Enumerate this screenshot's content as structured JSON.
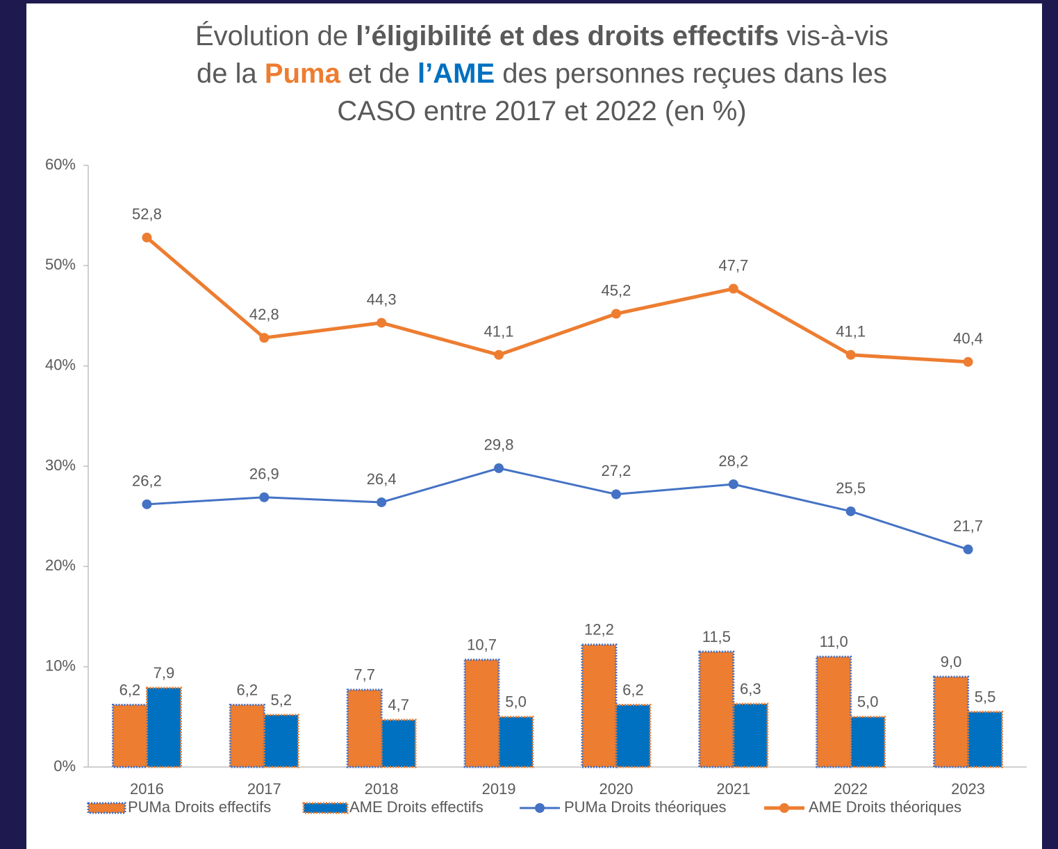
{
  "chart_data": {
    "type": "combo",
    "title_lines": [
      [
        {
          "text": "Évolution de "
        },
        {
          "text": "l’éligibilité et des droits effectifs",
          "bold": true
        },
        {
          "text": " vis-à-vis"
        }
      ],
      [
        {
          "text": "de la "
        },
        {
          "text": "Puma",
          "bold": true,
          "color": "#ed7d31"
        },
        {
          "text": " et de "
        },
        {
          "text": "l’AME",
          "bold": true,
          "color": "#0070c0"
        },
        {
          "text": " des personnes reçues dans les"
        }
      ],
      [
        {
          "text": "CASO entre 2017 et 2022 (en %)"
        }
      ]
    ],
    "categories": [
      "2016",
      "2017",
      "2018",
      "2019",
      "2020",
      "2021",
      "2022",
      "2023"
    ],
    "ylim": [
      0,
      60
    ],
    "yticks": [
      {
        "value": 0,
        "label": "0%"
      },
      {
        "value": 10,
        "label": "10%"
      },
      {
        "value": 20,
        "label": "20%"
      },
      {
        "value": 30,
        "label": "30%"
      },
      {
        "value": 40,
        "label": "40%"
      },
      {
        "value": 50,
        "label": "50%"
      },
      {
        "value": 60,
        "label": "60%"
      }
    ],
    "grid": false,
    "legend": "bottom",
    "series": [
      {
        "name": "PUMa Droits effectifs",
        "type": "bar",
        "color": "#ed7d31",
        "edge_color": "#4472c4",
        "values": [
          6.2,
          6.2,
          7.7,
          10.7,
          12.2,
          11.5,
          11.0,
          9.0
        ],
        "value_labels": [
          "6,2",
          "6,2",
          "7,7",
          "10,7",
          "12,2",
          "11,5",
          "11,0",
          "9,0"
        ]
      },
      {
        "name": "AME Droits effectifs",
        "type": "bar",
        "color": "#0070c0",
        "edge_color": "#ed7d31",
        "values": [
          7.9,
          5.2,
          4.7,
          5.0,
          6.2,
          6.3,
          5.0,
          5.5
        ],
        "value_labels": [
          "7,9",
          "5,2",
          "4,7",
          "5,0",
          "6,2",
          "6,3",
          "5,0",
          "5,5"
        ]
      },
      {
        "name": "PUMa Droits théoriques",
        "type": "line",
        "color": "#4472c4",
        "line_width": 3,
        "values": [
          26.2,
          26.9,
          26.4,
          29.8,
          27.2,
          28.2,
          25.5,
          21.7
        ],
        "value_labels": [
          "26,2",
          "26,9",
          "26,4",
          "29,8",
          "27,2",
          "28,2",
          "25,5",
          "21,7"
        ]
      },
      {
        "name": "AME Droits théoriques",
        "type": "line",
        "color": "#ed7d31",
        "line_width": 5,
        "values": [
          52.8,
          42.8,
          44.3,
          41.1,
          45.2,
          47.7,
          41.1,
          40.4
        ],
        "value_labels": [
          "52,8",
          "42,8",
          "44,3",
          "41,1",
          "45,2",
          "47,7",
          "41,1",
          "40,4"
        ]
      }
    ]
  }
}
